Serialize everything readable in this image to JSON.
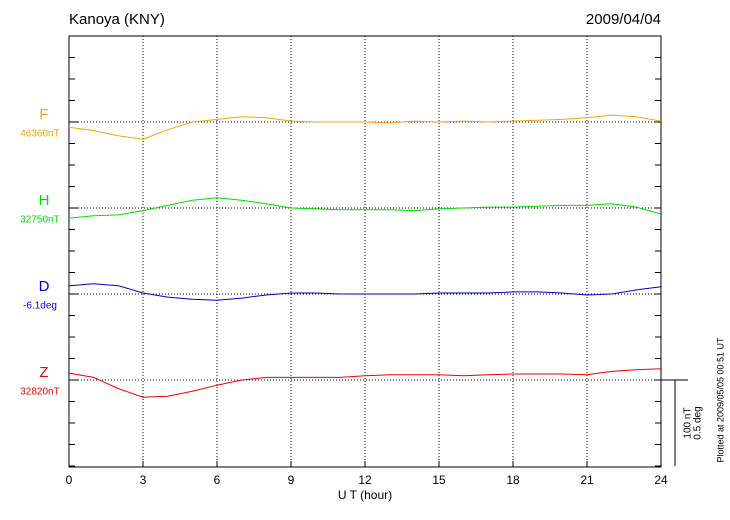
{
  "chart_data": {
    "type": "line",
    "title": "Kanoya (KNY)",
    "date": "2009/04/04",
    "x_label": "U T (hour)",
    "footer": "Plotted at 2009/05/05 00:51 UT",
    "x": [
      0,
      1,
      2,
      3,
      4,
      5,
      6,
      7,
      8,
      9,
      10,
      11,
      12,
      13,
      14,
      15,
      16,
      17,
      18,
      19,
      20,
      21,
      22,
      23,
      24
    ],
    "xlim": [
      0,
      24
    ],
    "xticks": [
      0,
      3,
      6,
      9,
      12,
      15,
      18,
      21,
      24
    ],
    "grid": true,
    "scale_bar": [
      {
        "value": 100,
        "label": "100 nT"
      },
      {
        "value": 0.5,
        "label": "0.5 deg"
      }
    ],
    "series": [
      {
        "name": "F",
        "color": "#f0a800",
        "baseline": {
          "value": 46360,
          "label": "46360nT"
        },
        "values": [
          46354,
          46350,
          46344,
          46340,
          46351,
          46360,
          46363,
          46366,
          46365,
          46361,
          46360,
          46360,
          46360,
          46359,
          46361,
          46360,
          46361,
          46360,
          46361,
          46362,
          46363,
          46365,
          46368,
          46366,
          46361
        ]
      },
      {
        "name": "H",
        "color": "#00dd00",
        "baseline": {
          "value": 32750,
          "label": "32750nT"
        },
        "values": [
          32738,
          32741,
          32742,
          32747,
          32753,
          32759,
          32762,
          32759,
          32755,
          32750,
          32749,
          32748,
          32748,
          32748,
          32747,
          32749,
          32750,
          32751,
          32751,
          32752,
          32753,
          32753,
          32755,
          32751,
          32743
        ]
      },
      {
        "name": "D",
        "color": "#0000cc",
        "baseline": {
          "value": -6.1,
          "label": "-6.1deg"
        },
        "values": [
          -6.052,
          -6.04,
          -6.052,
          -6.094,
          -6.118,
          -6.13,
          -6.136,
          -6.124,
          -6.106,
          -6.094,
          -6.094,
          -6.1,
          -6.1,
          -6.1,
          -6.1,
          -6.094,
          -6.094,
          -6.094,
          -6.088,
          -6.088,
          -6.094,
          -6.106,
          -6.1,
          -6.076,
          -6.058
        ]
      },
      {
        "name": "Z",
        "color": "#ee0000",
        "baseline": {
          "value": 32820,
          "label": "32820nT"
        },
        "values": [
          32828,
          32823,
          32810,
          32800,
          32801,
          32807,
          32814,
          32820,
          32823,
          32823,
          32823,
          32823,
          32825,
          32826,
          32826,
          32826,
          32825,
          32826,
          32827,
          32827,
          32827,
          32826,
          32830,
          32832,
          32833
        ]
      }
    ]
  }
}
